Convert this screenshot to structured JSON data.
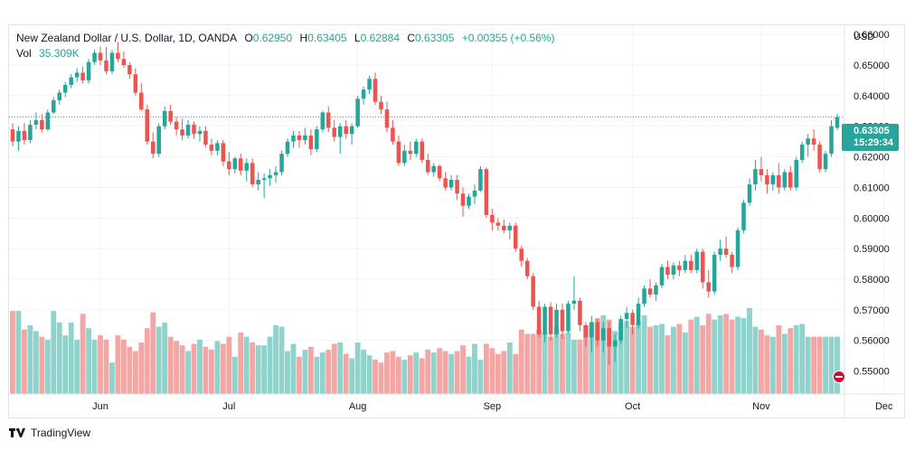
{
  "legend": {
    "title": "New Zealand Dollar / U.S. Dollar, 1D, OANDA",
    "o_label": "O",
    "o_value": "0.62950",
    "h_label": "H",
    "h_value": "0.63405",
    "l_label": "L",
    "l_value": "0.62884",
    "c_label": "C",
    "c_value": "0.63305",
    "change": "+0.00355 (+0.56%)",
    "vol_label": "Vol",
    "vol_value": "35.309K"
  },
  "price_badge": {
    "price": "0.63305",
    "countdown": "15:29:34"
  },
  "currency": "USD",
  "footer": {
    "brand": "TradingView"
  },
  "colors": {
    "up": "#26a69a",
    "down": "#ef5350",
    "up_vol": "#8fd3cc",
    "down_vol": "#f4a6a4",
    "grid": "#f0f3fa"
  },
  "chart_data": {
    "type": "candlestick",
    "symbol": "NZD/USD",
    "interval": "1D",
    "y_axis": {
      "ticks": [
        "0.66000",
        "0.65000",
        "0.64000",
        "0.63000",
        "0.62000",
        "0.61000",
        "0.60000",
        "0.59000",
        "0.58000",
        "0.57000",
        "0.56000",
        "0.55000"
      ],
      "range": [
        0.5425,
        0.663
      ]
    },
    "x_axis": {
      "labels": [
        "Jun",
        "Jul",
        "Aug",
        "Sep",
        "Oct",
        "Nov",
        "Dec"
      ],
      "label_index": [
        15,
        37,
        59,
        82,
        106,
        128,
        149
      ]
    },
    "last_price": 0.63305,
    "candles": [
      [
        0.629,
        0.631,
        0.6235,
        0.625
      ],
      [
        0.625,
        0.63,
        0.622,
        0.6285
      ],
      [
        0.6285,
        0.631,
        0.624,
        0.6255
      ],
      [
        0.6255,
        0.632,
        0.6245,
        0.6305
      ],
      [
        0.6305,
        0.6345,
        0.629,
        0.632
      ],
      [
        0.632,
        0.634,
        0.628,
        0.629
      ],
      [
        0.629,
        0.6355,
        0.6285,
        0.6345
      ],
      [
        0.6345,
        0.6395,
        0.634,
        0.6385
      ],
      [
        0.6385,
        0.642,
        0.637,
        0.641
      ],
      [
        0.641,
        0.6445,
        0.6395,
        0.6435
      ],
      [
        0.6435,
        0.647,
        0.6425,
        0.646
      ],
      [
        0.646,
        0.649,
        0.6445,
        0.6475
      ],
      [
        0.6475,
        0.6495,
        0.644,
        0.645
      ],
      [
        0.645,
        0.652,
        0.644,
        0.651
      ],
      [
        0.651,
        0.655,
        0.65,
        0.654
      ],
      [
        0.654,
        0.656,
        0.65,
        0.6515
      ],
      [
        0.6515,
        0.656,
        0.647,
        0.648
      ],
      [
        0.648,
        0.655,
        0.647,
        0.654
      ],
      [
        0.654,
        0.6575,
        0.651,
        0.652
      ],
      [
        0.652,
        0.6545,
        0.649,
        0.65
      ],
      [
        0.65,
        0.651,
        0.6455,
        0.647
      ],
      [
        0.647,
        0.649,
        0.64,
        0.641
      ],
      [
        0.641,
        0.644,
        0.635,
        0.6355
      ],
      [
        0.6355,
        0.637,
        0.624,
        0.625
      ],
      [
        0.625,
        0.628,
        0.6195,
        0.621
      ],
      [
        0.621,
        0.631,
        0.62,
        0.63
      ],
      [
        0.63,
        0.6365,
        0.629,
        0.635
      ],
      [
        0.635,
        0.637,
        0.6305,
        0.6315
      ],
      [
        0.6315,
        0.633,
        0.627,
        0.629
      ],
      [
        0.629,
        0.6325,
        0.6255,
        0.627
      ],
      [
        0.627,
        0.632,
        0.626,
        0.6305
      ],
      [
        0.6305,
        0.6315,
        0.626,
        0.6275
      ],
      [
        0.6275,
        0.63,
        0.625,
        0.6285
      ],
      [
        0.6285,
        0.63,
        0.623,
        0.624
      ],
      [
        0.624,
        0.626,
        0.6205,
        0.622
      ],
      [
        0.622,
        0.6255,
        0.6205,
        0.6245
      ],
      [
        0.6245,
        0.6255,
        0.617,
        0.6185
      ],
      [
        0.6185,
        0.6215,
        0.614,
        0.616
      ],
      [
        0.616,
        0.62,
        0.6145,
        0.6195
      ],
      [
        0.6195,
        0.621,
        0.614,
        0.6155
      ],
      [
        0.6155,
        0.6195,
        0.612,
        0.618
      ],
      [
        0.618,
        0.6195,
        0.61,
        0.611
      ],
      [
        0.611,
        0.615,
        0.609,
        0.6125
      ],
      [
        0.6125,
        0.6145,
        0.6065,
        0.613
      ],
      [
        0.613,
        0.616,
        0.6105,
        0.614
      ],
      [
        0.614,
        0.617,
        0.6115,
        0.615
      ],
      [
        0.615,
        0.622,
        0.614,
        0.621
      ],
      [
        0.621,
        0.626,
        0.62,
        0.625
      ],
      [
        0.625,
        0.6285,
        0.623,
        0.627
      ],
      [
        0.627,
        0.6285,
        0.623,
        0.6255
      ],
      [
        0.6255,
        0.6295,
        0.624,
        0.627
      ],
      [
        0.627,
        0.629,
        0.6205,
        0.6225
      ],
      [
        0.6225,
        0.63,
        0.6215,
        0.629
      ],
      [
        0.629,
        0.635,
        0.628,
        0.6345
      ],
      [
        0.6345,
        0.6365,
        0.628,
        0.6295
      ],
      [
        0.6295,
        0.632,
        0.625,
        0.6265
      ],
      [
        0.6265,
        0.631,
        0.621,
        0.63
      ],
      [
        0.63,
        0.632,
        0.626,
        0.6275
      ],
      [
        0.6275,
        0.631,
        0.624,
        0.63
      ],
      [
        0.63,
        0.64,
        0.6295,
        0.639
      ],
      [
        0.639,
        0.643,
        0.637,
        0.642
      ],
      [
        0.642,
        0.6465,
        0.6405,
        0.6455
      ],
      [
        0.6455,
        0.6475,
        0.637,
        0.638
      ],
      [
        0.638,
        0.64,
        0.634,
        0.6355
      ],
      [
        0.6355,
        0.638,
        0.628,
        0.6295
      ],
      [
        0.6295,
        0.632,
        0.624,
        0.625
      ],
      [
        0.625,
        0.627,
        0.617,
        0.618
      ],
      [
        0.618,
        0.624,
        0.617,
        0.622
      ],
      [
        0.622,
        0.625,
        0.619,
        0.621
      ],
      [
        0.621,
        0.626,
        0.62,
        0.625
      ],
      [
        0.625,
        0.626,
        0.618,
        0.619
      ],
      [
        0.619,
        0.621,
        0.614,
        0.615
      ],
      [
        0.615,
        0.618,
        0.6135,
        0.617
      ],
      [
        0.617,
        0.6175,
        0.612,
        0.613
      ],
      [
        0.613,
        0.615,
        0.609,
        0.61
      ],
      [
        0.61,
        0.614,
        0.609,
        0.6125
      ],
      [
        0.6125,
        0.614,
        0.606,
        0.608
      ],
      [
        0.608,
        0.61,
        0.6005,
        0.604
      ],
      [
        0.604,
        0.608,
        0.603,
        0.607
      ],
      [
        0.607,
        0.611,
        0.6045,
        0.609
      ],
      [
        0.609,
        0.617,
        0.6085,
        0.616
      ],
      [
        0.616,
        0.6165,
        0.6,
        0.601
      ],
      [
        0.601,
        0.603,
        0.596,
        0.5985
      ],
      [
        0.5985,
        0.6,
        0.596,
        0.5975
      ],
      [
        0.5975,
        0.5995,
        0.595,
        0.596
      ],
      [
        0.596,
        0.5985,
        0.593,
        0.5975
      ],
      [
        0.5975,
        0.5985,
        0.589,
        0.59
      ],
      [
        0.59,
        0.591,
        0.584,
        0.586
      ],
      [
        0.586,
        0.587,
        0.58,
        0.581
      ],
      [
        0.581,
        0.582,
        0.57,
        0.571
      ],
      [
        0.571,
        0.573,
        0.561,
        0.562
      ],
      [
        0.562,
        0.572,
        0.5595,
        0.571
      ],
      [
        0.571,
        0.5725,
        0.56,
        0.562
      ],
      [
        0.562,
        0.572,
        0.561,
        0.57
      ],
      [
        0.57,
        0.572,
        0.5605,
        0.563
      ],
      [
        0.563,
        0.573,
        0.5625,
        0.572
      ],
      [
        0.572,
        0.581,
        0.57,
        0.573
      ],
      [
        0.573,
        0.574,
        0.563,
        0.565
      ],
      [
        0.565,
        0.566,
        0.558,
        0.561
      ],
      [
        0.561,
        0.568,
        0.556,
        0.566
      ],
      [
        0.566,
        0.567,
        0.558,
        0.56
      ],
      [
        0.56,
        0.566,
        0.556,
        0.564
      ],
      [
        0.564,
        0.566,
        0.552,
        0.558
      ],
      [
        0.558,
        0.562,
        0.553,
        0.56
      ],
      [
        0.56,
        0.568,
        0.559,
        0.567
      ],
      [
        0.567,
        0.571,
        0.564,
        0.569
      ],
      [
        0.569,
        0.57,
        0.562,
        0.565
      ],
      [
        0.565,
        0.574,
        0.564,
        0.572
      ],
      [
        0.572,
        0.578,
        0.571,
        0.577
      ],
      [
        0.577,
        0.58,
        0.574,
        0.575
      ],
      [
        0.575,
        0.579,
        0.573,
        0.578
      ],
      [
        0.578,
        0.585,
        0.577,
        0.584
      ],
      [
        0.584,
        0.586,
        0.58,
        0.5815
      ],
      [
        0.5815,
        0.5855,
        0.58,
        0.5845
      ],
      [
        0.5845,
        0.586,
        0.581,
        0.583
      ],
      [
        0.583,
        0.588,
        0.582,
        0.586
      ],
      [
        0.586,
        0.588,
        0.582,
        0.583
      ],
      [
        0.583,
        0.59,
        0.582,
        0.589
      ],
      [
        0.589,
        0.59,
        0.577,
        0.579
      ],
      [
        0.579,
        0.583,
        0.574,
        0.576
      ],
      [
        0.576,
        0.589,
        0.575,
        0.588
      ],
      [
        0.588,
        0.593,
        0.586,
        0.59
      ],
      [
        0.59,
        0.594,
        0.587,
        0.588
      ],
      [
        0.588,
        0.589,
        0.582,
        0.584
      ],
      [
        0.584,
        0.597,
        0.583,
        0.596
      ],
      [
        0.596,
        0.606,
        0.595,
        0.605
      ],
      [
        0.605,
        0.613,
        0.604,
        0.611
      ],
      [
        0.611,
        0.619,
        0.609,
        0.616
      ],
      [
        0.616,
        0.62,
        0.612,
        0.614
      ],
      [
        0.614,
        0.616,
        0.608,
        0.611
      ],
      [
        0.611,
        0.615,
        0.609,
        0.614
      ],
      [
        0.614,
        0.618,
        0.608,
        0.61
      ],
      [
        0.61,
        0.616,
        0.609,
        0.615
      ],
      [
        0.615,
        0.617,
        0.609,
        0.61
      ],
      [
        0.61,
        0.62,
        0.609,
        0.619
      ],
      [
        0.619,
        0.625,
        0.618,
        0.624
      ],
      [
        0.624,
        0.6275,
        0.62,
        0.626
      ],
      [
        0.626,
        0.629,
        0.622,
        0.624
      ],
      [
        0.624,
        0.625,
        0.615,
        0.616
      ],
      [
        0.616,
        0.622,
        0.615,
        0.621
      ],
      [
        0.621,
        0.632,
        0.62,
        0.63
      ],
      [
        0.6295,
        0.6341,
        0.6288,
        0.633
      ]
    ],
    "volume": [
      0.58,
      0.58,
      0.45,
      0.48,
      0.44,
      0.4,
      0.38,
      0.58,
      0.5,
      0.41,
      0.5,
      0.38,
      0.56,
      0.46,
      0.38,
      0.41,
      0.38,
      0.22,
      0.41,
      0.38,
      0.33,
      0.3,
      0.36,
      0.46,
      0.57,
      0.47,
      0.5,
      0.4,
      0.37,
      0.34,
      0.3,
      0.35,
      0.38,
      0.33,
      0.31,
      0.37,
      0.35,
      0.4,
      0.26,
      0.43,
      0.4,
      0.36,
      0.34,
      0.34,
      0.4,
      0.48,
      0.47,
      0.3,
      0.35,
      0.26,
      0.31,
      0.33,
      0.26,
      0.29,
      0.31,
      0.35,
      0.36,
      0.28,
      0.25,
      0.36,
      0.31,
      0.27,
      0.24,
      0.22,
      0.29,
      0.3,
      0.26,
      0.24,
      0.27,
      0.29,
      0.25,
      0.31,
      0.29,
      0.32,
      0.3,
      0.28,
      0.3,
      0.34,
      0.26,
      0.35,
      0.24,
      0.35,
      0.32,
      0.28,
      0.3,
      0.36,
      0.28,
      0.45,
      0.42,
      0.42,
      0.45,
      0.43,
      0.4,
      0.47,
      0.42,
      0.43,
      0.38,
      0.38,
      0.48,
      0.5,
      0.53,
      0.55,
      0.52,
      0.44,
      0.5,
      0.51,
      0.47,
      0.5,
      0.55,
      0.47,
      0.48,
      0.49,
      0.41,
      0.47,
      0.49,
      0.43,
      0.52,
      0.54,
      0.48,
      0.56,
      0.52,
      0.55,
      0.56,
      0.52,
      0.54,
      0.53,
      0.6,
      0.47,
      0.45,
      0.41,
      0.4,
      0.48,
      0.42,
      0.46,
      0.48,
      0.49
    ]
  }
}
